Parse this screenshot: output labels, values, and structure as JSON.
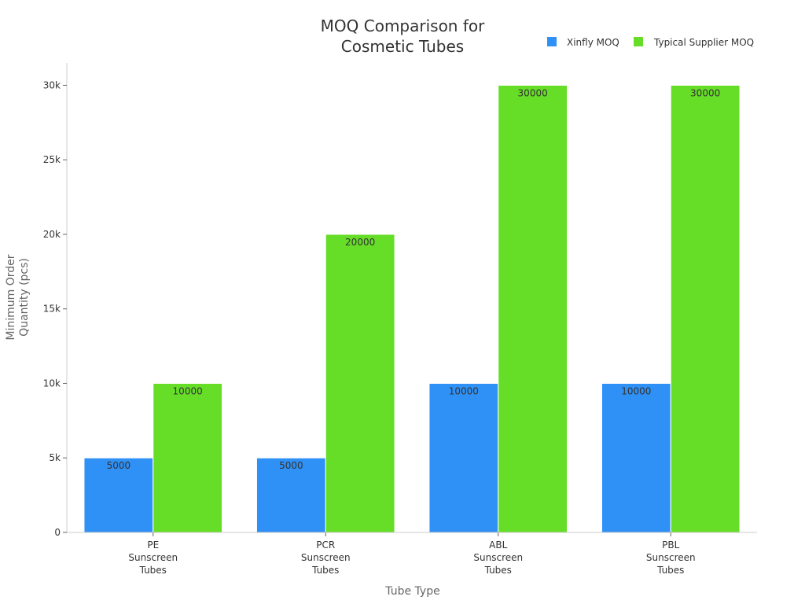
{
  "chart_data": {
    "type": "bar",
    "title": "MOQ Comparison for Cosmetic Tubes",
    "title_lines": [
      "MOQ Comparison for",
      "Cosmetic Tubes"
    ],
    "xlabel": "Tube Type",
    "ylabel_lines": [
      "Minimum Order",
      "Quantity (pcs)"
    ],
    "categories": [
      "PE Sunscreen Tubes",
      "PCR Sunscreen Tubes",
      "ABL Sunscreen Tubes",
      "PBL Sunscreen Tubes"
    ],
    "category_lines": [
      [
        "PE",
        "Sunscreen",
        "Tubes"
      ],
      [
        "PCR",
        "Sunscreen",
        "Tubes"
      ],
      [
        "ABL",
        "Sunscreen",
        "Tubes"
      ],
      [
        "PBL",
        "Sunscreen",
        "Tubes"
      ]
    ],
    "series": [
      {
        "name": "Xinfly MOQ",
        "color": "#2f90f5",
        "values": [
          5000,
          5000,
          10000,
          10000
        ],
        "labels": [
          "5000",
          "5000",
          "10000",
          "10000"
        ]
      },
      {
        "name": "Typical Supplier MOQ",
        "color": "#66dd27",
        "values": [
          10000,
          20000,
          30000,
          30000
        ],
        "labels": [
          "10000",
          "20000",
          "30000",
          "30000"
        ]
      }
    ],
    "ylim": [
      0,
      31500
    ],
    "yticks": [
      0,
      5000,
      10000,
      15000,
      20000,
      25000,
      30000
    ],
    "ytick_labels": [
      "0",
      "5k",
      "10k",
      "15k",
      "20k",
      "25k",
      "30k"
    ],
    "grid": false,
    "legend_position": "top-right"
  }
}
